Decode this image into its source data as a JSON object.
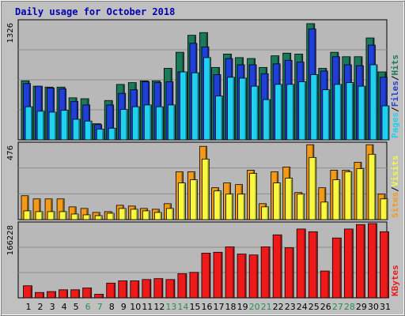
{
  "title": "Daily usage for October 2018",
  "colors": {
    "background": "#c0c0c0",
    "plot_bg": "#b8b8b8",
    "title": "#0000b0",
    "hits": "#1a7a5a",
    "files": "#1f3fd8",
    "pages": "#20d0f0",
    "sites": "#f8f840",
    "visits": "#f39a18",
    "kbytes": "#ee1a1a",
    "weekend": "#2e8b57",
    "weekday": "#000000"
  },
  "chart_data": [
    {
      "type": "bar",
      "panel": "hits-files-pages",
      "ymax_label": "1326",
      "ylim": [
        0,
        1326
      ],
      "legend": [
        {
          "label": "Pages",
          "color": "#20d0f0"
        },
        {
          "label": "Files",
          "color": "#1f3fd8"
        },
        {
          "label": "Hits",
          "color": "#1a7a5a"
        }
      ],
      "categories": [
        "1",
        "2",
        "3",
        "4",
        "5",
        "6",
        "7",
        "8",
        "9",
        "10",
        "11",
        "12",
        "13",
        "14",
        "15",
        "16",
        "17",
        "18",
        "19",
        "20",
        "21",
        "22",
        "23",
        "24",
        "25",
        "26",
        "27",
        "28",
        "29",
        "30",
        "31"
      ],
      "series": [
        {
          "name": "Hits",
          "values": [
            660,
            600,
            590,
            590,
            470,
            460,
            180,
            440,
            620,
            640,
            660,
            660,
            800,
            980,
            1170,
            1200,
            810,
            960,
            920,
            910,
            810,
            940,
            970,
            960,
            1300,
            800,
            980,
            930,
            930,
            1140,
            760
          ]
        },
        {
          "name": "Files",
          "values": [
            630,
            600,
            580,
            570,
            430,
            390,
            170,
            390,
            520,
            560,
            650,
            640,
            650,
            760,
            1080,
            1040,
            730,
            910,
            840,
            840,
            740,
            850,
            890,
            870,
            1240,
            770,
            930,
            840,
            830,
            1060,
            700
          ]
        },
        {
          "name": "Pages",
          "values": [
            370,
            320,
            310,
            330,
            230,
            210,
            120,
            130,
            340,
            370,
            390,
            370,
            390,
            760,
            750,
            920,
            490,
            700,
            690,
            600,
            450,
            620,
            620,
            650,
            730,
            560,
            620,
            640,
            600,
            840,
            380
          ]
        }
      ]
    },
    {
      "type": "bar",
      "panel": "sites-visits",
      "ymax_label": "476",
      "ylim": [
        0,
        476
      ],
      "legend": [
        {
          "label": "Sites",
          "color": "#f39a18"
        },
        {
          "label": "Visits",
          "color": "#f8f840"
        }
      ],
      "categories": [
        "1",
        "2",
        "3",
        "4",
        "5",
        "6",
        "7",
        "8",
        "9",
        "10",
        "11",
        "12",
        "13",
        "14",
        "15",
        "16",
        "17",
        "18",
        "19",
        "20",
        "21",
        "22",
        "23",
        "24",
        "25",
        "26",
        "27",
        "28",
        "29",
        "30",
        "31"
      ],
      "series": [
        {
          "name": "Visits",
          "values": [
            150,
            130,
            130,
            130,
            80,
            70,
            45,
            50,
            90,
            85,
            70,
            65,
            100,
            300,
            300,
            460,
            200,
            230,
            220,
            310,
            100,
            300,
            330,
            170,
            470,
            200,
            310,
            310,
            360,
            470,
            160
          ]
        },
        {
          "name": "Sites",
          "values": [
            55,
            50,
            50,
            50,
            35,
            30,
            25,
            40,
            70,
            65,
            55,
            45,
            70,
            230,
            250,
            380,
            180,
            160,
            160,
            290,
            80,
            230,
            260,
            160,
            390,
            110,
            250,
            300,
            320,
            410,
            130
          ]
        }
      ]
    },
    {
      "type": "bar",
      "panel": "kbytes",
      "ymax_label": "166228",
      "ylim": [
        0,
        166228
      ],
      "legend": [
        {
          "label": "KBytes",
          "color": "#ee1a1a"
        }
      ],
      "categories": [
        "1",
        "2",
        "3",
        "4",
        "5",
        "6",
        "7",
        "8",
        "9",
        "10",
        "11",
        "12",
        "13",
        "14",
        "15",
        "16",
        "17",
        "18",
        "19",
        "20",
        "21",
        "22",
        "23",
        "24",
        "25",
        "26",
        "27",
        "28",
        "29",
        "30",
        "31"
      ],
      "series": [
        {
          "name": "KBytes",
          "values": [
            27000,
            12000,
            14000,
            18000,
            18000,
            22000,
            8000,
            33000,
            38000,
            38000,
            41000,
            43000,
            41000,
            54000,
            57000,
            100000,
            102000,
            114000,
            98000,
            96000,
            114000,
            141000,
            112000,
            154000,
            148000,
            60000,
            134000,
            154000,
            164000,
            166228,
            148000
          ]
        }
      ]
    }
  ],
  "weekend_days": [
    "6",
    "7",
    "13",
    "14",
    "20",
    "21",
    "27",
    "28"
  ]
}
